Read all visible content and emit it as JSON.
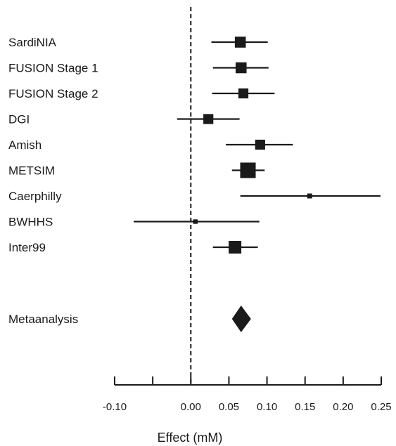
{
  "chart_data": {
    "type": "forest",
    "xlabel": "Effect (mM)",
    "xlim": [
      -0.1,
      0.25
    ],
    "ticks": [
      {
        "value": -0.1,
        "label": "-0.10"
      },
      {
        "value": -0.05,
        "label": ""
      },
      {
        "value": 0.0,
        "label": "0.00"
      },
      {
        "value": 0.05,
        "label": "0.05"
      },
      {
        "value": 0.1,
        "label": "0.10"
      },
      {
        "value": 0.15,
        "label": "0.15"
      },
      {
        "value": 0.2,
        "label": "0.20"
      },
      {
        "value": 0.25,
        "label": "0.25"
      }
    ],
    "reference_line": 0.0,
    "studies": [
      {
        "name": "SardiNIA",
        "effect": 0.065,
        "ci": [
          0.027,
          0.101
        ],
        "weight": 3
      },
      {
        "name": "FUSION Stage 1",
        "effect": 0.066,
        "ci": [
          0.029,
          0.102
        ],
        "weight": 3
      },
      {
        "name": "FUSION Stage 2",
        "effect": 0.069,
        "ci": [
          0.028,
          0.11
        ],
        "weight": 2.5
      },
      {
        "name": "DGI",
        "effect": 0.023,
        "ci": [
          -0.018,
          0.064
        ],
        "weight": 2.5
      },
      {
        "name": "Amish",
        "effect": 0.091,
        "ci": [
          0.046,
          0.134
        ],
        "weight": 2.5
      },
      {
        "name": "METSIM",
        "effect": 0.075,
        "ci": [
          0.054,
          0.097
        ],
        "weight": 6
      },
      {
        "name": "Caerphilly",
        "effect": 0.156,
        "ci": [
          0.065,
          0.249
        ],
        "weight": 0.6
      },
      {
        "name": "BWHHS",
        "effect": 0.006,
        "ci": [
          -0.075,
          0.09
        ],
        "weight": 0.5
      },
      {
        "name": "Inter99",
        "effect": 0.058,
        "ci": [
          0.029,
          0.088
        ],
        "weight": 4
      }
    ],
    "summary": {
      "name": "Metaanalysis",
      "effect": 0.066,
      "ci": [
        0.054,
        0.079
      ]
    }
  }
}
